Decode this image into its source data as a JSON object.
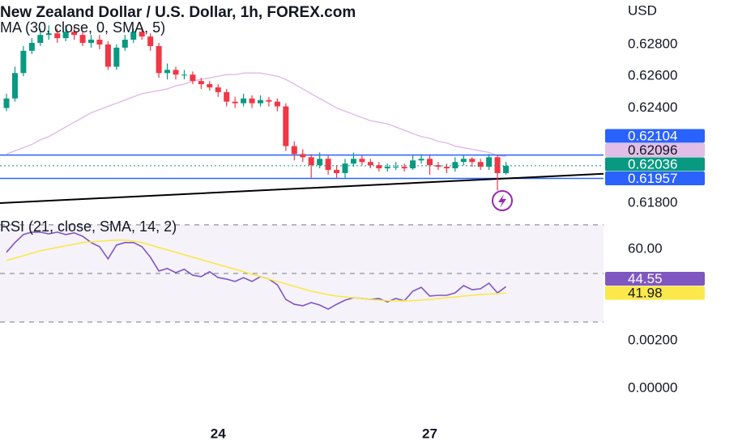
{
  "chart_data": [
    {
      "type": "candlestick",
      "title": "New Zealand Dollar / U.S. Dollar, 1h, FOREX.com",
      "currency": "USD",
      "categories": [
        null,
        null,
        null,
        null,
        null,
        null,
        null,
        null,
        null,
        null,
        null,
        null,
        null,
        null,
        null,
        null,
        null,
        null,
        null,
        null,
        null,
        null,
        null,
        null,
        null,
        "24",
        null,
        null,
        null,
        null,
        null,
        null,
        null,
        null,
        null,
        null,
        null,
        null,
        null,
        null,
        null,
        null,
        null,
        null,
        null,
        null,
        null,
        null,
        null,
        null,
        "27",
        null,
        null,
        null,
        null,
        null,
        null,
        null,
        null,
        null
      ],
      "open": [
        0.624,
        0.6246,
        0.6262,
        0.6276,
        0.6281,
        0.6286,
        0.6287,
        0.6284,
        0.6288,
        0.6286,
        0.6281,
        0.6283,
        0.628,
        0.6266,
        0.6278,
        0.6283,
        0.6288,
        0.6285,
        0.6279,
        0.6262,
        0.6264,
        0.6261,
        0.6261,
        0.6257,
        0.6255,
        0.6253,
        0.625,
        0.6244,
        0.6243,
        0.6246,
        0.6243,
        0.6245,
        0.6244,
        0.6241,
        0.6216,
        0.6211,
        0.6209,
        0.6204,
        0.6208,
        0.6201,
        0.6199,
        0.6205,
        0.6208,
        0.6206,
        0.6204,
        0.6202,
        0.6203,
        0.6203,
        0.6202,
        0.6207,
        0.6208,
        0.6204,
        0.6203,
        0.6202,
        0.6206,
        0.6208,
        0.6206,
        0.6203,
        0.6209,
        0.6199
      ],
      "high": [
        0.6249,
        0.6266,
        0.6279,
        0.6284,
        0.629,
        0.6292,
        0.629,
        0.6292,
        0.6291,
        0.6288,
        0.6286,
        0.6286,
        0.6282,
        0.628,
        0.6286,
        0.629,
        0.6291,
        0.6287,
        0.6281,
        0.6268,
        0.6266,
        0.6264,
        0.6263,
        0.6259,
        0.6257,
        0.6255,
        0.6252,
        0.6247,
        0.6249,
        0.6248,
        0.6248,
        0.6247,
        0.6246,
        0.6243,
        0.6219,
        0.6214,
        0.6211,
        0.6212,
        0.621,
        0.6204,
        0.6208,
        0.6212,
        0.621,
        0.6208,
        0.6206,
        0.6205,
        0.6206,
        0.6205,
        0.621,
        0.6211,
        0.621,
        0.6206,
        0.6205,
        0.6209,
        0.621,
        0.6209,
        0.6208,
        0.6211,
        0.621,
        0.6206
      ],
      "low": [
        0.6238,
        0.6244,
        0.626,
        0.6274,
        0.6279,
        0.6283,
        0.6281,
        0.6282,
        0.6283,
        0.6279,
        0.6278,
        0.6277,
        0.6264,
        0.6264,
        0.6276,
        0.6281,
        0.6283,
        0.6276,
        0.6259,
        0.6258,
        0.6258,
        0.6258,
        0.6255,
        0.6252,
        0.6251,
        0.6247,
        0.6241,
        0.624,
        0.6241,
        0.624,
        0.6241,
        0.6241,
        0.6238,
        0.6213,
        0.6207,
        0.6206,
        0.6196,
        0.6202,
        0.6198,
        0.6196,
        0.6196,
        0.6203,
        0.6204,
        0.6202,
        0.62,
        0.62,
        0.6201,
        0.62,
        0.6201,
        0.6205,
        0.6198,
        0.6201,
        0.6199,
        0.62,
        0.6204,
        0.6203,
        0.6201,
        0.6201,
        0.6188,
        0.6198
      ],
      "close": [
        0.6246,
        0.6262,
        0.6276,
        0.6281,
        0.6286,
        0.6287,
        0.6284,
        0.6288,
        0.6286,
        0.6281,
        0.6283,
        0.628,
        0.6266,
        0.6278,
        0.6283,
        0.6288,
        0.6285,
        0.6279,
        0.6262,
        0.6264,
        0.6261,
        0.6261,
        0.6257,
        0.6255,
        0.6253,
        0.625,
        0.6244,
        0.6243,
        0.6246,
        0.6243,
        0.6245,
        0.6244,
        0.6241,
        0.6216,
        0.6211,
        0.6209,
        0.6204,
        0.6208,
        0.6201,
        0.6199,
        0.6205,
        0.6208,
        0.6206,
        0.6204,
        0.6202,
        0.6203,
        0.6203,
        0.6202,
        0.6207,
        0.6208,
        0.6204,
        0.6203,
        0.6202,
        0.6206,
        0.6208,
        0.6206,
        0.6203,
        0.6209,
        0.6199,
        0.62036
      ],
      "up_color": "#089981",
      "down_color": "#f23645",
      "series": [
        {
          "name": "MA (30, close, 0, SMA, 5)",
          "color": "#e1bee7",
          "values": [
            0.6211,
            0.6213,
            0.6215,
            0.6217,
            0.622,
            0.6222,
            0.6225,
            0.6228,
            0.6231,
            0.6234,
            0.6237,
            0.6239,
            0.6241,
            0.6243,
            0.6245,
            0.6247,
            0.6249,
            0.625,
            0.6251,
            0.6252,
            0.6254,
            0.6255,
            0.6257,
            0.6258,
            0.6259,
            0.626,
            0.6261,
            0.6261,
            0.6262,
            0.6262,
            0.6262,
            0.6261,
            0.626,
            0.6258,
            0.6255,
            0.6252,
            0.6249,
            0.6246,
            0.6243,
            0.624,
            0.6238,
            0.6236,
            0.6234,
            0.6232,
            0.6231,
            0.623,
            0.6228,
            0.6226,
            0.6224,
            0.6222,
            0.6221,
            0.6219,
            0.6218,
            0.6216,
            0.6215,
            0.6214,
            0.6213,
            0.6212,
            0.621,
            0.62096
          ]
        }
      ],
      "hlines": [
        {
          "value": 0.62104,
          "color": "#2962ff"
        },
        {
          "value": 0.61957,
          "color": "#2962ff"
        }
      ],
      "trendline": {
        "values": [
          0.618,
          0.61986
        ],
        "color": "#000000"
      },
      "ylim": [
        0.6173,
        0.6308
      ],
      "yticks": [
        {
          "value": 0.628,
          "label": "0.62800"
        },
        {
          "value": 0.626,
          "label": "0.62600"
        },
        {
          "value": 0.624,
          "label": "0.62400"
        },
        {
          "value": 0.618,
          "label": "0.61800"
        }
      ]
    },
    {
      "type": "line",
      "title": "RSI (21, close, SMA, 14, 2)",
      "series": [
        {
          "color": "#7e57c2",
          "values": [
            58.7,
            62.7,
            66.0,
            67.0,
            67.0,
            66.3,
            67.0,
            66.0,
            66.7,
            65.3,
            62.7,
            61.0,
            56.0,
            61.7,
            62.7,
            62.7,
            61.0,
            56.7,
            51.0,
            52.0,
            50.3,
            51.7,
            49.3,
            48.7,
            50.7,
            48.3,
            47.7,
            46.7,
            48.3,
            46.7,
            48.7,
            47.7,
            45.3,
            39.3,
            37.3,
            36.7,
            38.0,
            37.0,
            35.3,
            37.3,
            39.0,
            40.0,
            39.7,
            39.3,
            39.7,
            38.3,
            39.7,
            38.7,
            42.7,
            44.3,
            40.7,
            41.0,
            41.0,
            42.0,
            45.0,
            43.3,
            43.7,
            46.0,
            42.0,
            44.55
          ]
        },
        {
          "color": "#fbe84a",
          "values": [
            55.3,
            56.3,
            57.3,
            58.3,
            59.3,
            60.0,
            60.7,
            61.3,
            62.0,
            62.7,
            63.0,
            63.3,
            63.5,
            63.7,
            63.7,
            63.3,
            62.7,
            61.7,
            60.7,
            59.7,
            58.7,
            57.7,
            56.7,
            55.7,
            54.7,
            53.7,
            52.7,
            51.7,
            50.7,
            49.7,
            48.7,
            47.7,
            46.7,
            45.7,
            44.7,
            43.7,
            42.7,
            42.0,
            41.3,
            40.7,
            40.3,
            40.0,
            39.7,
            39.3,
            39.0,
            38.8,
            38.7,
            38.7,
            38.8,
            39.0,
            39.3,
            39.7,
            40.0,
            40.3,
            40.7,
            41.0,
            41.3,
            41.5,
            41.7,
            41.98
          ]
        }
      ],
      "levels": [
        70,
        50,
        30
      ],
      "band_color": "#7e57c2",
      "ylim": [
        26,
        74.3
      ],
      "yticks": [
        {
          "value": 60,
          "label": "60.00"
        }
      ]
    },
    {
      "type": "line",
      "ylim": [
        -0.00136,
        0.00237
      ],
      "yticks": [
        {
          "value": 0.002,
          "label": "0.00200"
        },
        {
          "value": 0,
          "label": "0.00000"
        }
      ]
    }
  ]
}
